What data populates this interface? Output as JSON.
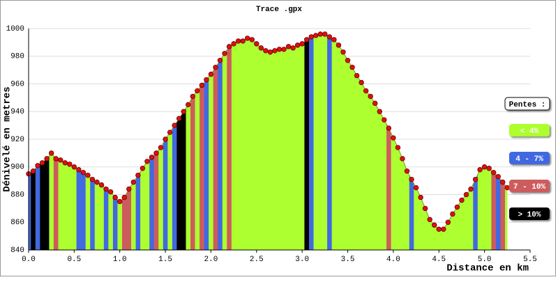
{
  "chart_data": {
    "type": "area",
    "title": "Trace .gpx",
    "xlabel": "Distance en km",
    "ylabel": "Dénivelé en metres",
    "xlim": [
      0,
      5.5
    ],
    "xticks": [
      {
        "value": 0,
        "label": "0.0"
      },
      0.5,
      {
        "value": 1,
        "label": "1.0"
      },
      1.5,
      {
        "value": 2,
        "label": "2.0"
      },
      2.5,
      {
        "value": 3,
        "label": "3.0"
      },
      3.5,
      {
        "value": 4,
        "label": "4.0"
      },
      4.5,
      {
        "value": 5,
        "label": "5.0"
      },
      5.5
    ],
    "ylim": [
      840,
      1000
    ],
    "yticks": [
      840,
      860,
      880,
      900,
      920,
      940,
      960,
      980,
      1000
    ],
    "grid": true,
    "line_color": "#7a9a20",
    "marker_color": "#e01010",
    "legend": {
      "title": "Pentes :",
      "items": [
        {
          "label": "< 4%",
          "color": "#adff2f"
        },
        {
          "label": "4 - 7%",
          "color": "#4169e1"
        },
        {
          "label": "7 - 10%",
          "color": "#cd5c5c"
        },
        {
          "label": "> 10%",
          "color": "#000000"
        }
      ]
    },
    "x": [
      0.0,
      0.05,
      0.1,
      0.15,
      0.2,
      0.25,
      0.3,
      0.35,
      0.4,
      0.45,
      0.5,
      0.55,
      0.6,
      0.65,
      0.7,
      0.75,
      0.8,
      0.85,
      0.9,
      0.95,
      1.0,
      1.05,
      1.1,
      1.15,
      1.2,
      1.25,
      1.3,
      1.35,
      1.4,
      1.45,
      1.5,
      1.55,
      1.6,
      1.65,
      1.7,
      1.75,
      1.8,
      1.85,
      1.9,
      1.95,
      2.0,
      2.05,
      2.1,
      2.15,
      2.2,
      2.25,
      2.3,
      2.35,
      2.4,
      2.45,
      2.5,
      2.55,
      2.6,
      2.65,
      2.7,
      2.75,
      2.8,
      2.85,
      2.9,
      2.95,
      3.0,
      3.05,
      3.1,
      3.15,
      3.2,
      3.25,
      3.3,
      3.35,
      3.4,
      3.45,
      3.5,
      3.55,
      3.6,
      3.65,
      3.7,
      3.75,
      3.8,
      3.85,
      3.9,
      3.95,
      4.0,
      4.05,
      4.1,
      4.15,
      4.2,
      4.25,
      4.3,
      4.35,
      4.4,
      4.45,
      4.5,
      4.55,
      4.6,
      4.65,
      4.7,
      4.75,
      4.8,
      4.85,
      4.9,
      4.95,
      5.0,
      5.05,
      5.1,
      5.15,
      5.2,
      5.25
    ],
    "values": [
      895,
      897,
      901,
      903,
      906,
      910,
      906,
      905,
      903,
      902,
      900,
      898,
      896,
      894,
      891,
      889,
      887,
      884,
      882,
      878,
      875,
      878,
      884,
      889,
      894,
      899,
      904,
      907,
      910,
      914,
      920,
      925,
      930,
      935,
      940,
      945,
      951,
      955,
      959,
      963,
      967,
      972,
      977,
      982,
      987,
      989,
      991,
      991,
      993,
      992,
      989,
      986,
      984,
      983,
      984,
      985,
      985,
      987,
      986,
      988,
      989,
      992,
      994,
      995,
      996,
      996,
      994,
      992,
      988,
      983,
      977,
      972,
      966,
      961,
      955,
      951,
      946,
      940,
      934,
      928,
      921,
      914,
      906,
      897,
      891,
      885,
      878,
      870,
      862,
      858,
      855,
      855,
      860,
      866,
      871,
      876,
      880,
      884,
      891,
      898,
      900,
      899,
      896,
      893,
      889,
      885
    ],
    "slope_class": [
      1,
      3,
      1,
      3,
      3,
      0,
      2,
      0,
      0,
      0,
      0,
      1,
      1,
      0,
      1,
      0,
      0,
      1,
      0,
      1,
      0,
      2,
      2,
      0,
      1,
      0,
      0,
      1,
      2,
      0,
      1,
      0,
      1,
      3,
      3,
      0,
      2,
      0,
      2,
      1,
      0,
      2,
      1,
      0,
      2,
      0,
      0,
      0,
      0,
      0,
      0,
      0,
      0,
      0,
      0,
      0,
      0,
      0,
      0,
      0,
      0,
      3,
      1,
      0,
      0,
      0,
      1,
      0,
      0,
      0,
      0,
      0,
      0,
      0,
      0,
      0,
      0,
      0,
      0,
      2,
      0,
      0,
      0,
      0,
      1,
      0,
      0,
      0,
      0,
      0,
      0,
      0,
      0,
      0,
      0,
      0,
      0,
      0,
      1,
      0,
      0,
      0,
      2,
      1,
      2,
      0
    ]
  }
}
